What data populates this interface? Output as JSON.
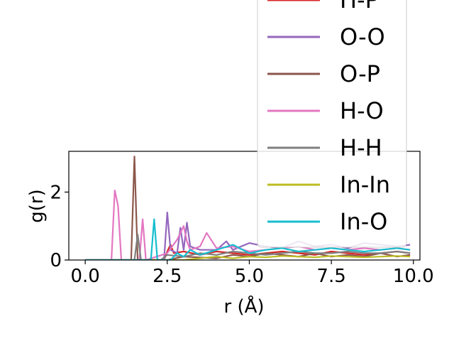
{
  "chart_data": {
    "type": "line",
    "xlabel": "r (Å)",
    "ylabel": "g(r)",
    "xlim": [
      -0.5,
      10.2
    ],
    "ylim": [
      0,
      3.2
    ],
    "xticks": [
      0.0,
      2.5,
      5.0,
      7.5,
      10.0
    ],
    "xtick_labels": [
      "0.0",
      "2.5",
      "5.0",
      "7.5",
      "10.0"
    ],
    "yticks": [
      0,
      2
    ],
    "ytick_labels": [
      "0",
      "2"
    ],
    "legend_position": "upper-right",
    "series": [
      {
        "name": "H-P",
        "color": "#d62728",
        "x": [
          0,
          2.4,
          2.5,
          2.6,
          2.7,
          3.0,
          3.5,
          4.0,
          4.5,
          5.0,
          5.5,
          6.0,
          6.5,
          7.0,
          7.5,
          8.0,
          8.5,
          9.0,
          9.5,
          9.9
        ],
        "y": [
          0,
          0,
          0.25,
          0.45,
          0.2,
          0.25,
          0.15,
          0.25,
          0.2,
          0.15,
          0.2,
          0.25,
          0.2,
          0.15,
          0.25,
          0.2,
          0.15,
          0.2,
          0.25,
          0.2
        ]
      },
      {
        "name": "O-O",
        "color": "#9467bd",
        "x": [
          0,
          2.4,
          2.5,
          2.6,
          2.8,
          2.9,
          3.0,
          3.1,
          3.2,
          3.5,
          4.0,
          4.3,
          4.5,
          5.0,
          5.5,
          6.0,
          6.5,
          7.0,
          7.5,
          8.0,
          8.5,
          9.0,
          9.5,
          9.9
        ],
        "y": [
          0,
          0,
          1.4,
          0.3,
          0.2,
          0.95,
          0.3,
          1.1,
          0.4,
          0.3,
          0.3,
          0.55,
          0.3,
          0.5,
          0.4,
          0.35,
          0.55,
          0.4,
          0.45,
          0.35,
          0.5,
          0.45,
          0.4,
          0.45
        ]
      },
      {
        "name": "O-P",
        "color": "#8c564b",
        "x": [
          0,
          1.4,
          1.5,
          1.6,
          2.5,
          3.0,
          4.0,
          4.5,
          5.0,
          5.5,
          6.0,
          6.5,
          7.0,
          7.5,
          8.0,
          8.5,
          9.0,
          9.5,
          9.9
        ],
        "y": [
          0,
          0,
          3.05,
          0,
          0,
          0.1,
          0.05,
          0.15,
          0.1,
          0.2,
          0.15,
          0.1,
          0.2,
          0.1,
          0.15,
          0.1,
          0.2,
          0.1,
          0.15
        ]
      },
      {
        "name": "H-O",
        "color": "#e377c2",
        "x": [
          0,
          0.8,
          0.9,
          1.0,
          1.1,
          1.65,
          1.75,
          1.85,
          2.5,
          2.8,
          3.0,
          3.1,
          3.2,
          3.5,
          3.7,
          4.0,
          4.5,
          5.0,
          5.5,
          6.0,
          6.5,
          7.0,
          7.5,
          8.0,
          8.5,
          9.0,
          9.5,
          9.9
        ],
        "y": [
          0,
          0,
          2.05,
          1.6,
          0,
          0,
          1.2,
          0,
          0.2,
          0.6,
          1.0,
          0.55,
          0.3,
          0.4,
          0.8,
          0.35,
          0.4,
          0.25,
          0.3,
          0.35,
          0.4,
          0.3,
          0.35,
          0.3,
          0.35,
          0.3,
          0.35,
          0.3
        ]
      },
      {
        "name": "H-H",
        "color": "#7f7f7f",
        "x": [
          0,
          1.5,
          1.6,
          1.7,
          2.3,
          2.5,
          3.0,
          3.5,
          4.0,
          4.5,
          5.0,
          5.5,
          6.0,
          6.5,
          7.0,
          7.5,
          8.0,
          8.5,
          9.0,
          9.5,
          9.9
        ],
        "y": [
          0,
          0,
          0.75,
          0,
          0,
          0.15,
          0.1,
          0.2,
          0.15,
          0.25,
          0.2,
          0.15,
          0.2,
          0.25,
          0.2,
          0.2,
          0.25,
          0.2,
          0.2,
          0.25,
          0.2
        ]
      },
      {
        "name": "In-In",
        "color": "#bcbd22",
        "x": [
          0,
          3.0,
          3.5,
          4.0,
          4.5,
          5.0,
          5.5,
          6.0,
          6.5,
          7.0,
          7.5,
          8.0,
          8.5,
          9.0,
          9.5,
          9.9
        ],
        "y": [
          0,
          0,
          0.05,
          0.1,
          0.05,
          0.1,
          0.08,
          0.12,
          0.1,
          0.08,
          0.12,
          0.1,
          0.08,
          0.1,
          0.12,
          0.1
        ]
      },
      {
        "name": "In-O",
        "color": "#17becf",
        "x": [
          0,
          2.0,
          2.1,
          2.2,
          2.6,
          2.8,
          3.0,
          3.2,
          3.5,
          4.0,
          4.5,
          5.0,
          5.5,
          6.0,
          6.5,
          7.0,
          7.5,
          8.0,
          8.5,
          9.0,
          9.5,
          9.9
        ],
        "y": [
          0,
          0,
          1.2,
          0,
          0,
          0.2,
          0.1,
          0.3,
          0.15,
          0.3,
          0.45,
          0.2,
          0.3,
          0.35,
          0.25,
          0.3,
          0.35,
          0.3,
          0.25,
          0.3,
          0.35,
          0.3
        ]
      }
    ]
  }
}
